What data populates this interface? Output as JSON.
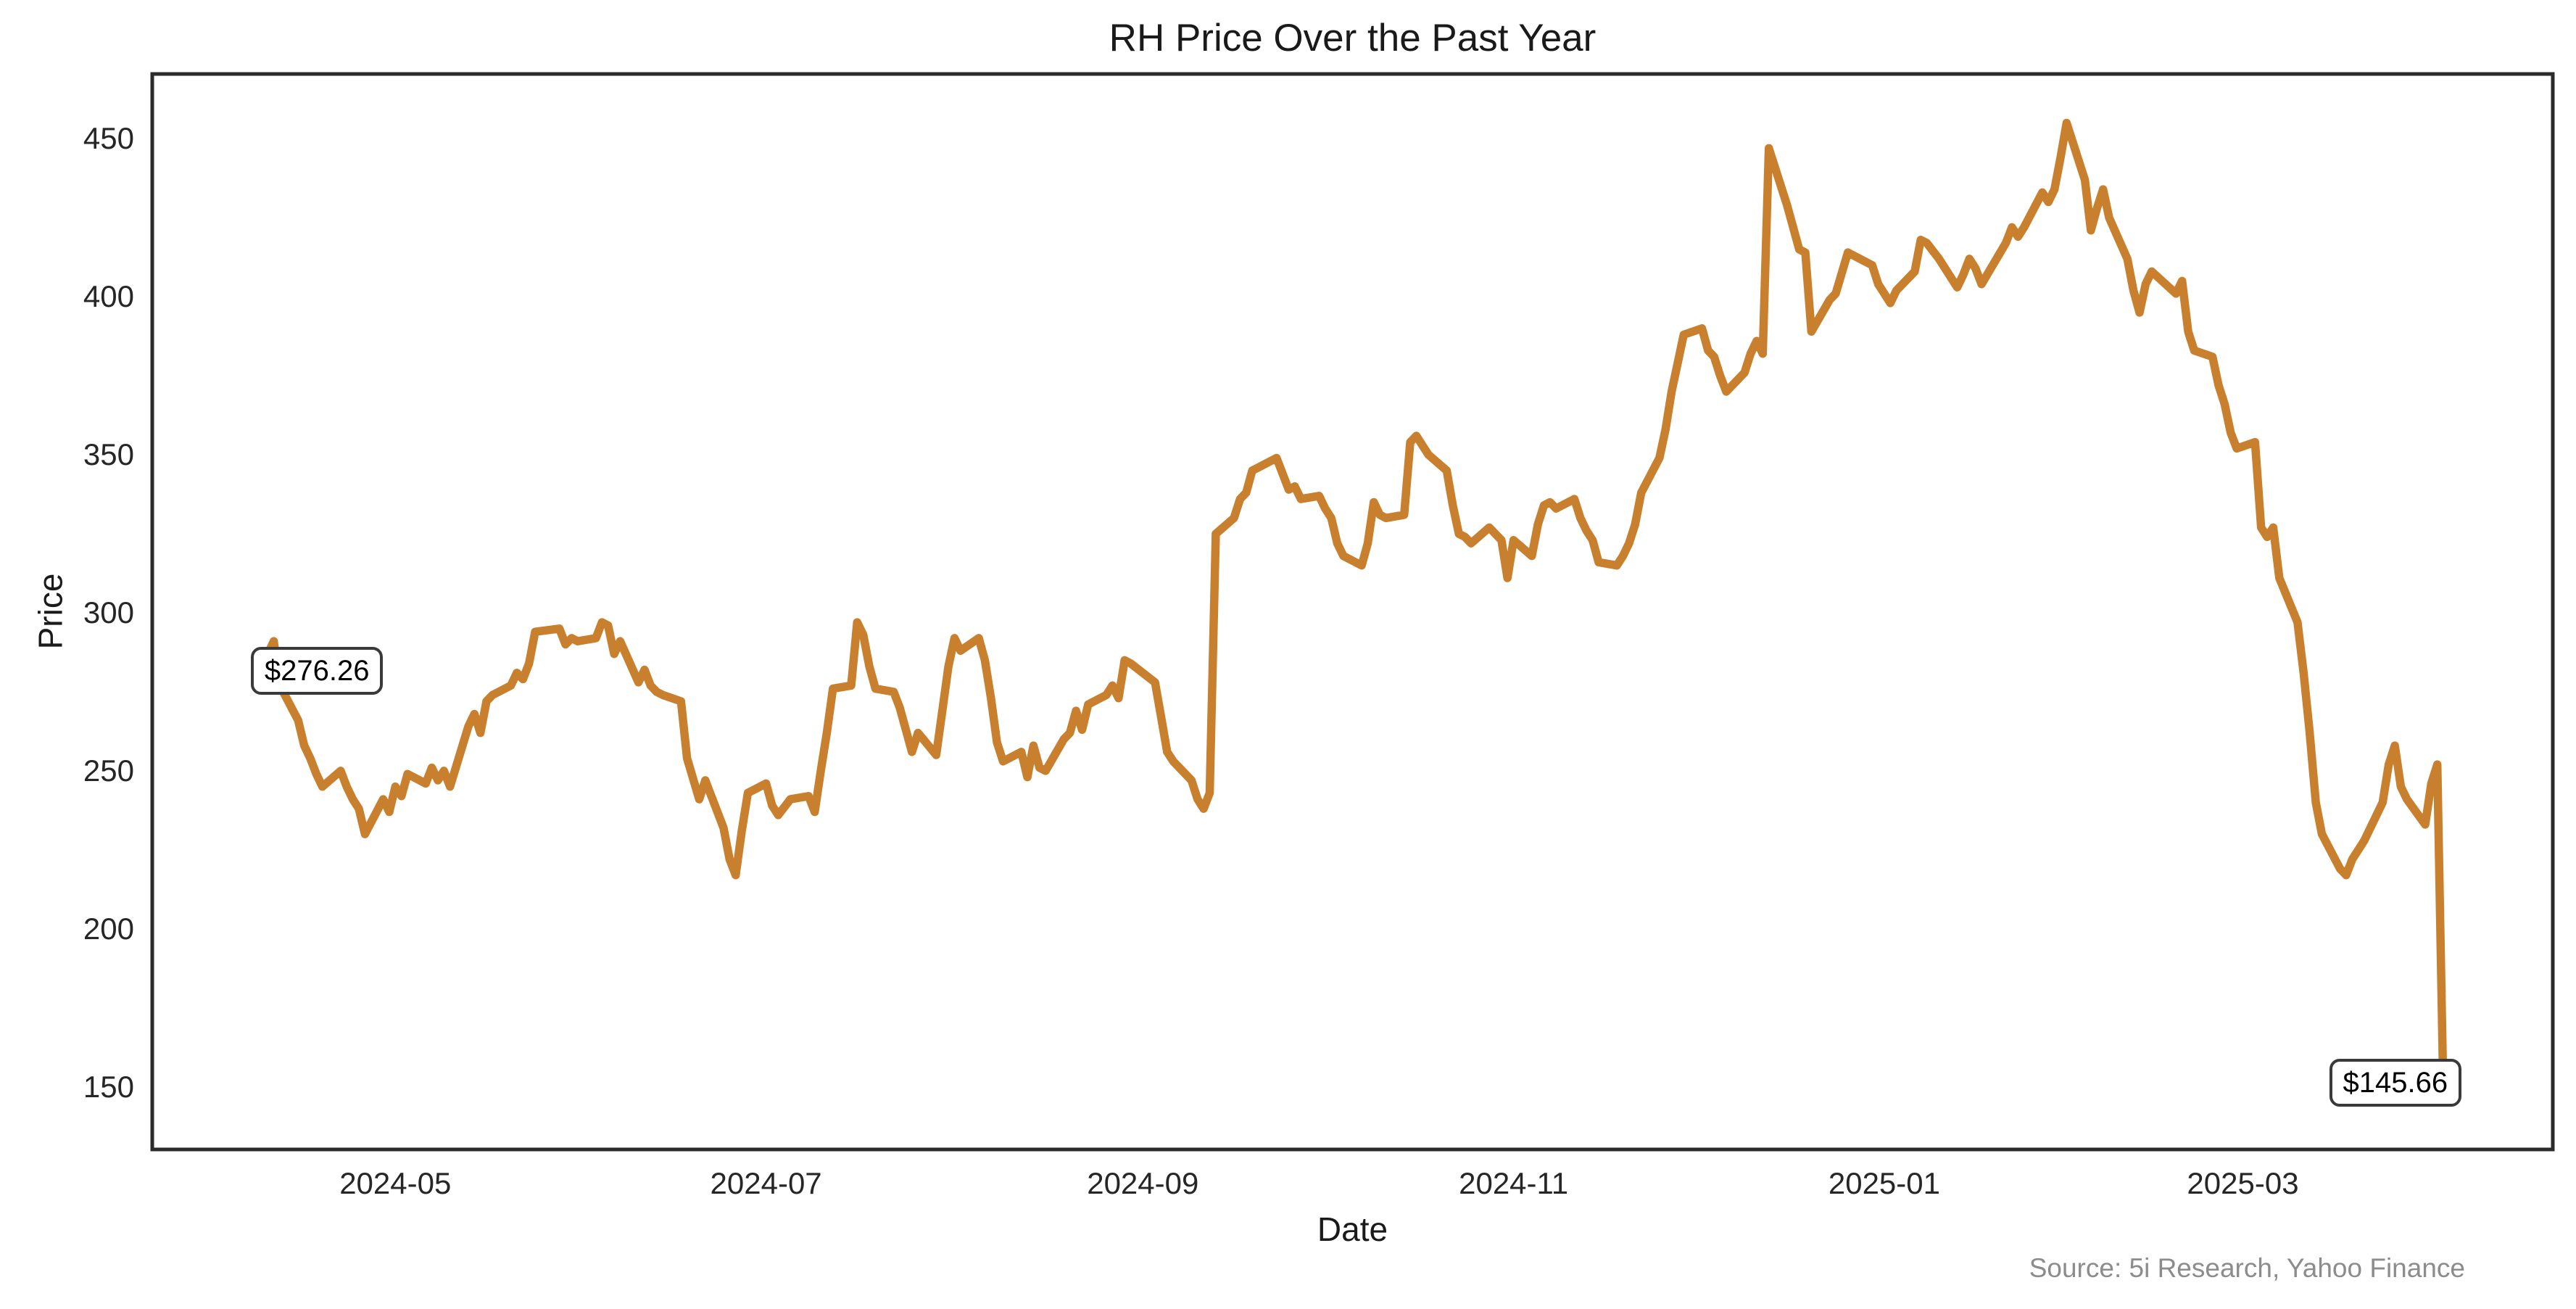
{
  "title": "RH Price Over the Past Year",
  "xlabel": "Date",
  "ylabel": "Price",
  "source": "Source: 5i Research, Yahoo Finance",
  "annotations": {
    "start_label": "$276.26",
    "end_label": "$145.66"
  },
  "colors": {
    "line": "#C8802F",
    "spine": "#2b2b2b",
    "text": "#1a1a1a",
    "tick_text": "#262626",
    "muted": "#8c8c8c",
    "background": "#ffffff"
  },
  "chart_data": {
    "type": "line",
    "title": "RH Price Over the Past Year",
    "xlabel": "Date",
    "ylabel": "Price",
    "legend": "none",
    "grid": false,
    "ylim": [
      130.2,
      470.5
    ],
    "xlim": [
      "2024-03-22",
      "2025-04-21"
    ],
    "y_ticks": [
      150,
      200,
      250,
      300,
      350,
      400,
      450
    ],
    "x_ticks": [
      {
        "label": "2024-05",
        "date": "2024-05-01"
      },
      {
        "label": "2024-07",
        "date": "2024-07-01"
      },
      {
        "label": "2024-09",
        "date": "2024-09-01"
      },
      {
        "label": "2024-11",
        "date": "2024-11-01"
      },
      {
        "label": "2025-01",
        "date": "2025-01-01"
      },
      {
        "label": "2025-03",
        "date": "2025-03-01"
      }
    ],
    "series": [
      {
        "name": "RH",
        "x": [
          "2024-04-09",
          "2024-04-10",
          "2024-04-11",
          "2024-04-12",
          "2024-04-15",
          "2024-04-16",
          "2024-04-17",
          "2024-04-18",
          "2024-04-19",
          "2024-04-22",
          "2024-04-23",
          "2024-04-24",
          "2024-04-25",
          "2024-04-26",
          "2024-04-29",
          "2024-04-30",
          "2024-05-01",
          "2024-05-02",
          "2024-05-03",
          "2024-05-06",
          "2024-05-07",
          "2024-05-08",
          "2024-05-09",
          "2024-05-10",
          "2024-05-13",
          "2024-05-14",
          "2024-05-15",
          "2024-05-16",
          "2024-05-17",
          "2024-05-20",
          "2024-05-21",
          "2024-05-22",
          "2024-05-23",
          "2024-05-24",
          "2024-05-28",
          "2024-05-29",
          "2024-05-30",
          "2024-05-31",
          "2024-06-03",
          "2024-06-04",
          "2024-06-05",
          "2024-06-06",
          "2024-06-07",
          "2024-06-10",
          "2024-06-11",
          "2024-06-12",
          "2024-06-13",
          "2024-06-14",
          "2024-06-17",
          "2024-06-18",
          "2024-06-20",
          "2024-06-21",
          "2024-06-24",
          "2024-06-25",
          "2024-06-26",
          "2024-06-27",
          "2024-06-28",
          "2024-07-01",
          "2024-07-02",
          "2024-07-03",
          "2024-07-05",
          "2024-07-08",
          "2024-07-09",
          "2024-07-10",
          "2024-07-11",
          "2024-07-12",
          "2024-07-15",
          "2024-07-16",
          "2024-07-17",
          "2024-07-18",
          "2024-07-19",
          "2024-07-22",
          "2024-07-23",
          "2024-07-24",
          "2024-07-25",
          "2024-07-26",
          "2024-07-29",
          "2024-07-30",
          "2024-07-31",
          "2024-08-01",
          "2024-08-02",
          "2024-08-05",
          "2024-08-06",
          "2024-08-07",
          "2024-08-08",
          "2024-08-09",
          "2024-08-12",
          "2024-08-13",
          "2024-08-14",
          "2024-08-15",
          "2024-08-16",
          "2024-08-19",
          "2024-08-20",
          "2024-08-21",
          "2024-08-22",
          "2024-08-23",
          "2024-08-26",
          "2024-08-27",
          "2024-08-28",
          "2024-08-29",
          "2024-08-30",
          "2024-09-03",
          "2024-09-04",
          "2024-09-05",
          "2024-09-06",
          "2024-09-09",
          "2024-09-10",
          "2024-09-11",
          "2024-09-12",
          "2024-09-13",
          "2024-09-16",
          "2024-09-17",
          "2024-09-18",
          "2024-09-19",
          "2024-09-20",
          "2024-09-23",
          "2024-09-24",
          "2024-09-25",
          "2024-09-26",
          "2024-09-27",
          "2024-09-30",
          "2024-10-01",
          "2024-10-02",
          "2024-10-03",
          "2024-10-04",
          "2024-10-07",
          "2024-10-08",
          "2024-10-09",
          "2024-10-10",
          "2024-10-11",
          "2024-10-14",
          "2024-10-15",
          "2024-10-16",
          "2024-10-17",
          "2024-10-18",
          "2024-10-21",
          "2024-10-22",
          "2024-10-23",
          "2024-10-24",
          "2024-10-25",
          "2024-10-28",
          "2024-10-29",
          "2024-10-30",
          "2024-10-31",
          "2024-11-01",
          "2024-11-04",
          "2024-11-05",
          "2024-11-06",
          "2024-11-07",
          "2024-11-08",
          "2024-11-11",
          "2024-11-12",
          "2024-11-13",
          "2024-11-14",
          "2024-11-15",
          "2024-11-18",
          "2024-11-19",
          "2024-11-20",
          "2024-11-21",
          "2024-11-22",
          "2024-11-25",
          "2024-11-26",
          "2024-11-27",
          "2024-11-29",
          "2024-12-02",
          "2024-12-03",
          "2024-12-04",
          "2024-12-05",
          "2024-12-06",
          "2024-12-09",
          "2024-12-10",
          "2024-12-11",
          "2024-12-12",
          "2024-12-13",
          "2024-12-16",
          "2024-12-17",
          "2024-12-18",
          "2024-12-19",
          "2024-12-20",
          "2024-12-23",
          "2024-12-24",
          "2024-12-26",
          "2024-12-27",
          "2024-12-30",
          "2024-12-31",
          "2025-01-02",
          "2025-01-03",
          "2025-01-06",
          "2025-01-07",
          "2025-01-08",
          "2025-01-10",
          "2025-01-13",
          "2025-01-14",
          "2025-01-15",
          "2025-01-16",
          "2025-01-17",
          "2025-01-21",
          "2025-01-22",
          "2025-01-23",
          "2025-01-24",
          "2025-01-27",
          "2025-01-28",
          "2025-01-29",
          "2025-01-30",
          "2025-01-31",
          "2025-02-03",
          "2025-02-04",
          "2025-02-05",
          "2025-02-06",
          "2025-02-07",
          "2025-02-10",
          "2025-02-11",
          "2025-02-12",
          "2025-02-13",
          "2025-02-14",
          "2025-02-18",
          "2025-02-19",
          "2025-02-20",
          "2025-02-21",
          "2025-02-24",
          "2025-02-25",
          "2025-02-26",
          "2025-02-27",
          "2025-02-28",
          "2025-03-03",
          "2025-03-04",
          "2025-03-05",
          "2025-03-06",
          "2025-03-07",
          "2025-03-10",
          "2025-03-11",
          "2025-03-12",
          "2025-03-13",
          "2025-03-14",
          "2025-03-17",
          "2025-03-18",
          "2025-03-19",
          "2025-03-20",
          "2025-03-21",
          "2025-03-24",
          "2025-03-25",
          "2025-03-26",
          "2025-03-27",
          "2025-03-28",
          "2025-03-31",
          "2025-04-01",
          "2025-04-02",
          "2025-04-03",
          "2025-04-04"
        ],
        "y": [
          276.26,
          287,
          291,
          277,
          266,
          258,
          254,
          249,
          245,
          250,
          245,
          241,
          238,
          230,
          241,
          237,
          245,
          242,
          249,
          246,
          251,
          247,
          250,
          245,
          264,
          268,
          262,
          272,
          274,
          277,
          281,
          279,
          284,
          294,
          295,
          290,
          292,
          291,
          292,
          297,
          296,
          287,
          291,
          278,
          282,
          277,
          275,
          274,
          272,
          254,
          241,
          247,
          232,
          222,
          217,
          231,
          243,
          246,
          239,
          236,
          241,
          242,
          237,
          250,
          262,
          276,
          277,
          297,
          293,
          283,
          276,
          275,
          270,
          263,
          256,
          262,
          255,
          269,
          283,
          292,
          288,
          292,
          285,
          273,
          259,
          253,
          256,
          248,
          258,
          251,
          250,
          260,
          262,
          269,
          263,
          271,
          274,
          277,
          273,
          285,
          284,
          278,
          267,
          256,
          253,
          247,
          241,
          238,
          243,
          325,
          330,
          336,
          338,
          345,
          346,
          349,
          344,
          339,
          340,
          336,
          337,
          333,
          330,
          322,
          318,
          315,
          322,
          335,
          331,
          330,
          331,
          354,
          356,
          353,
          350,
          345,
          334,
          325,
          324,
          322,
          327,
          325,
          323,
          311,
          323,
          318,
          328,
          334,
          335,
          333,
          336,
          330,
          326,
          323,
          316,
          315,
          318,
          322,
          328,
          338,
          349,
          358,
          370,
          388,
          390,
          383,
          381,
          375,
          370,
          376,
          382,
          386,
          382,
          447,
          429,
          422,
          415,
          414,
          389,
          399,
          401,
          414,
          413,
          410,
          404,
          398,
          402,
          408,
          418,
          417,
          412,
          403,
          407,
          412,
          409,
          404,
          417,
          422,
          419,
          422,
          433,
          430,
          434,
          444,
          455,
          437,
          421,
          428,
          434,
          425,
          412,
          402,
          395,
          404,
          408,
          401,
          405,
          389,
          383,
          381,
          372,
          366,
          357,
          352,
          354,
          327,
          324,
          327,
          311,
          297,
          281,
          262,
          240,
          230,
          219,
          217,
          222,
          225,
          228,
          240,
          252,
          258,
          245,
          241,
          233,
          246,
          252,
          147,
          145.66
        ]
      }
    ],
    "annotations": [
      {
        "text": "$276.26",
        "attached_to": "first-point"
      },
      {
        "text": "$145.66",
        "attached_to": "last-point"
      }
    ]
  }
}
